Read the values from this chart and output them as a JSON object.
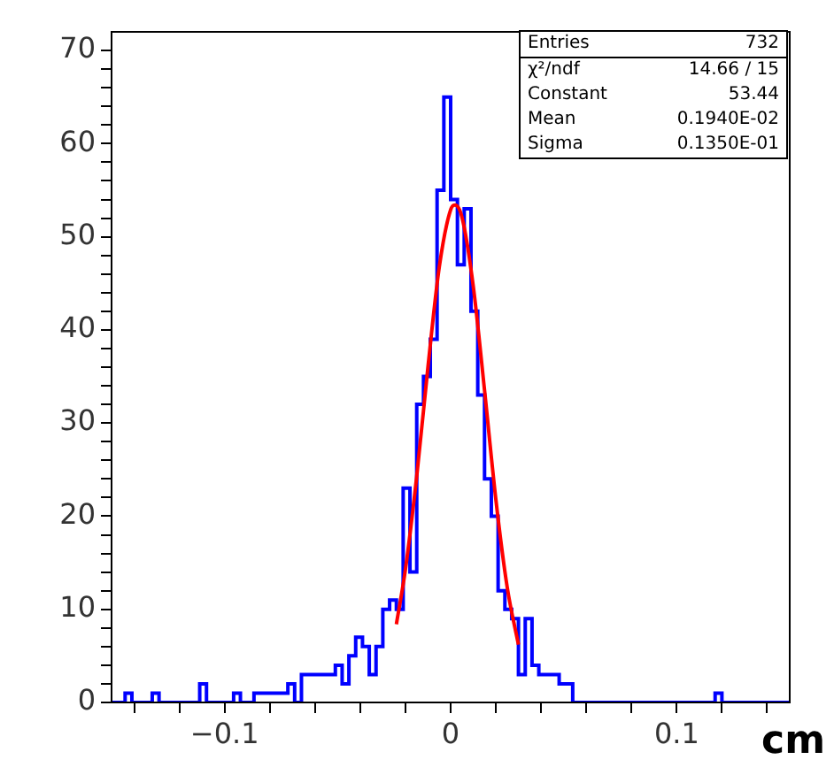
{
  "chart_data": {
    "type": "histogram",
    "color": "#0000ff",
    "bins": [
      -0.15,
      -0.147,
      -0.144,
      -0.141,
      -0.138,
      -0.135,
      -0.132,
      -0.129,
      -0.126,
      -0.123,
      -0.12,
      -0.117,
      -0.114,
      -0.111,
      -0.108,
      -0.105,
      -0.102,
      -0.099,
      -0.096,
      -0.093,
      -0.09,
      -0.087,
      -0.084,
      -0.081,
      -0.078,
      -0.075,
      -0.072,
      -0.069,
      -0.066,
      -0.063,
      -0.06,
      -0.057,
      -0.054,
      -0.051,
      -0.048,
      -0.045,
      -0.042,
      -0.039,
      -0.036,
      -0.033,
      -0.03,
      -0.027,
      -0.024,
      -0.021,
      -0.018,
      -0.015,
      -0.012,
      -0.009,
      -0.006,
      -0.003,
      0,
      0.003,
      0.006,
      0.009,
      0.012,
      0.015,
      0.018,
      0.021,
      0.024,
      0.027,
      0.03,
      0.033,
      0.036,
      0.039,
      0.042,
      0.045,
      0.048,
      0.051,
      0.054,
      0.057,
      0.06,
      0.063,
      0.066,
      0.069,
      0.072,
      0.075,
      0.078,
      0.081,
      0.084,
      0.087,
      0.09,
      0.093,
      0.096,
      0.099,
      0.102,
      0.105,
      0.108,
      0.111,
      0.114,
      0.117,
      0.12,
      0.123,
      0.126,
      0.129,
      0.132,
      0.135,
      0.138,
      0.141,
      0.144,
      0.147,
      0.15
    ],
    "values": [
      0,
      0,
      1,
      0,
      0,
      0,
      1,
      0,
      0,
      0,
      0,
      0,
      0,
      2,
      0,
      0,
      0,
      0,
      1,
      0,
      0,
      1,
      1,
      1,
      1,
      1,
      2,
      0,
      3,
      3,
      3,
      3,
      3,
      4,
      2,
      5,
      7,
      6,
      3,
      6,
      10,
      11,
      10,
      23,
      14,
      32,
      35,
      39,
      55,
      65,
      54,
      47,
      53,
      42,
      33,
      24,
      20,
      12,
      10,
      9,
      3,
      9,
      4,
      3,
      3,
      3,
      2,
      2,
      0,
      0,
      0,
      0,
      0,
      0,
      0,
      0,
      0,
      0,
      0,
      0,
      0,
      0,
      0,
      0,
      0,
      0,
      0,
      0,
      0,
      1,
      0,
      0,
      0,
      0,
      0,
      0,
      0,
      0,
      0,
      0
    ],
    "series": [
      {
        "type": "line",
        "color": "#ff0000",
        "x": [
          -0.024,
          -0.02,
          -0.015,
          -0.01,
          -0.005,
          0,
          0.002,
          0.005,
          0.01,
          0.015,
          0.02,
          0.025,
          0.03
        ],
        "values": [
          8.4,
          14.3,
          24.3,
          36.1,
          46.8,
          52.9,
          53.4,
          52.1,
          44.7,
          33.5,
          21.8,
          12.4,
          6.2
        ]
      }
    ],
    "xlabel": "cm",
    "xlim": [
      -0.15,
      0.15
    ],
    "ylim": [
      0,
      72
    ],
    "xticks": [
      {
        "value": -0.14,
        "label": null
      },
      {
        "value": -0.12,
        "label": null
      },
      {
        "value": -0.1,
        "label": "−0.1"
      },
      {
        "value": -0.08,
        "label": null
      },
      {
        "value": -0.06,
        "label": null
      },
      {
        "value": -0.04,
        "label": null
      },
      {
        "value": -0.02,
        "label": null
      },
      0,
      {
        "value": 0.02,
        "label": null
      },
      {
        "value": 0.04,
        "label": null
      },
      {
        "value": 0.06,
        "label": null
      },
      {
        "value": 0.08,
        "label": null
      },
      0.1,
      {
        "value": 0.12,
        "label": null
      },
      {
        "value": 0.14,
        "label": null
      }
    ],
    "yticks": [
      0,
      {
        "value": 2,
        "label": null
      },
      {
        "value": 4,
        "label": null
      },
      {
        "value": 6,
        "label": null
      },
      {
        "value": 8,
        "label": null
      },
      10,
      {
        "value": 12,
        "label": null
      },
      {
        "value": 14,
        "label": null
      },
      {
        "value": 16,
        "label": null
      },
      {
        "value": 18,
        "label": null
      },
      20,
      {
        "value": 22,
        "label": null
      },
      {
        "value": 24,
        "label": null
      },
      {
        "value": 26,
        "label": null
      },
      {
        "value": 28,
        "label": null
      },
      30,
      {
        "value": 32,
        "label": null
      },
      {
        "value": 34,
        "label": null
      },
      {
        "value": 36,
        "label": null
      },
      {
        "value": 38,
        "label": null
      },
      40,
      {
        "value": 42,
        "label": null
      },
      {
        "value": 44,
        "label": null
      },
      {
        "value": 46,
        "label": null
      },
      {
        "value": 48,
        "label": null
      },
      50,
      {
        "value": 52,
        "label": null
      },
      {
        "value": 54,
        "label": null
      },
      {
        "value": 56,
        "label": null
      },
      {
        "value": 58,
        "label": null
      },
      60,
      {
        "value": 62,
        "label": null
      },
      {
        "value": 64,
        "label": null
      },
      {
        "value": 66,
        "label": null
      },
      {
        "value": 68,
        "label": null
      },
      70
    ],
    "annotations": [
      "Entries 732",
      "χ²/ndf 14.66 / 15",
      "Constant 53.44",
      "Mean 0.1940E-02",
      "Sigma 0.1350E-01"
    ],
    "grid": false,
    "legend": false
  }
}
